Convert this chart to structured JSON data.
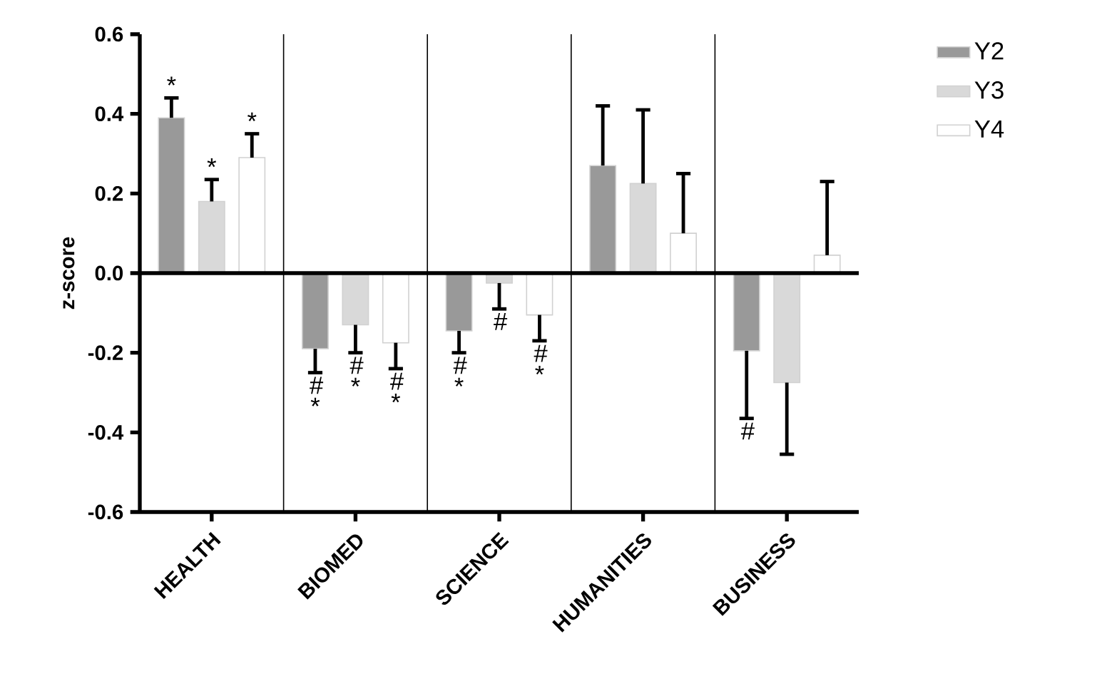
{
  "chart_data": {
    "type": "bar",
    "ylabel": "z-score",
    "categories": [
      "HEALTH",
      "BIOMED",
      "SCIENCE",
      "HUMANITIES",
      "BUSINESS"
    ],
    "series": [
      {
        "name": "Y2",
        "color": "#999999",
        "values": [
          0.39,
          -0.19,
          -0.145,
          0.27,
          -0.195
        ],
        "errors": [
          [
            0.39,
            0.44
          ],
          [
            -0.25,
            -0.19
          ],
          [
            -0.2,
            -0.145
          ],
          [
            0.27,
            0.42
          ],
          [
            -0.365,
            -0.195
          ]
        ],
        "value_labels": [
          "*",
          "# *",
          "# *",
          null,
          "#"
        ]
      },
      {
        "name": "Y3",
        "color": "#d9d9d9",
        "values": [
          0.18,
          -0.13,
          -0.025,
          0.225,
          -0.275
        ],
        "errors": [
          [
            0.18,
            0.235
          ],
          [
            -0.2,
            -0.13
          ],
          [
            -0.09,
            -0.025
          ],
          [
            0.225,
            0.41
          ],
          [
            -0.455,
            -0.275
          ]
        ],
        "value_labels": [
          "*",
          "# *",
          "#",
          null,
          null
        ]
      },
      {
        "name": "Y4",
        "color": "#ffffff",
        "values": [
          0.29,
          -0.175,
          -0.105,
          0.1,
          0.045
        ],
        "errors": [
          [
            0.29,
            0.35
          ],
          [
            -0.24,
            -0.175
          ],
          [
            -0.17,
            -0.105
          ],
          [
            0.1,
            0.25
          ],
          [
            0.045,
            0.23
          ]
        ],
        "value_labels": [
          "*",
          "# *",
          "# *",
          null,
          null
        ]
      }
    ],
    "ylim": [
      -0.6,
      0.6
    ],
    "yticks": [
      -0.6,
      -0.4,
      -0.2,
      {
        "value": 0,
        "label": "0.0"
      },
      0.2,
      0.4,
      0.6
    ],
    "grid": "x",
    "legend": "right"
  }
}
